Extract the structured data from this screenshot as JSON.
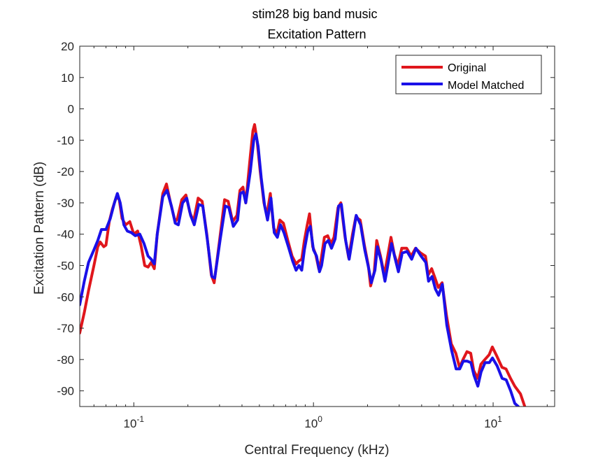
{
  "chart_data": {
    "type": "line",
    "title": "stim28 big band music",
    "subtitle": "Excitation Pattern",
    "xlabel": "Central Frequency (kHz)",
    "ylabel": "Excitation Pattern (dB)",
    "xscale": "log",
    "xlim": [
      0.05,
      22
    ],
    "ylim": [
      -95,
      20
    ],
    "yticks": [
      20,
      10,
      0,
      -10,
      -20,
      -30,
      -40,
      -50,
      -60,
      -70,
      -80,
      -90
    ],
    "ytick_labels": [
      "20",
      "10",
      "0",
      "-10",
      "-20",
      "-30",
      "-40",
      "-50",
      "-60",
      "-70",
      "-80",
      "-90"
    ],
    "xticks": [
      {
        "value": 0.1,
        "base": "10",
        "exp": "-1"
      },
      {
        "value": 1,
        "base": "10",
        "exp": "0"
      },
      {
        "value": 10,
        "base": "10",
        "exp": "1"
      }
    ],
    "grid": false,
    "legend_position": "top-right",
    "series": [
      {
        "name": "Original",
        "color": "#e0161c",
        "points": [
          [
            0.05,
            -71.5
          ],
          [
            0.053,
            -65
          ],
          [
            0.056,
            -58
          ],
          [
            0.06,
            -50
          ],
          [
            0.063,
            -44
          ],
          [
            0.065,
            -42.5
          ],
          [
            0.068,
            -44
          ],
          [
            0.07,
            -43.5
          ],
          [
            0.073,
            -36
          ],
          [
            0.076,
            -32
          ],
          [
            0.08,
            -28
          ],
          [
            0.083,
            -29
          ],
          [
            0.086,
            -35
          ],
          [
            0.09,
            -37
          ],
          [
            0.095,
            -36
          ],
          [
            0.1,
            -40
          ],
          [
            0.105,
            -39
          ],
          [
            0.11,
            -44
          ],
          [
            0.115,
            -50
          ],
          [
            0.12,
            -50.5
          ],
          [
            0.125,
            -49
          ],
          [
            0.13,
            -51
          ],
          [
            0.135,
            -40
          ],
          [
            0.145,
            -27
          ],
          [
            0.152,
            -24
          ],
          [
            0.16,
            -30
          ],
          [
            0.17,
            -36
          ],
          [
            0.175,
            -35
          ],
          [
            0.185,
            -29
          ],
          [
            0.195,
            -27.5
          ],
          [
            0.205,
            -33
          ],
          [
            0.215,
            -36
          ],
          [
            0.228,
            -28.5
          ],
          [
            0.24,
            -29.5
          ],
          [
            0.255,
            -40
          ],
          [
            0.27,
            -53
          ],
          [
            0.28,
            -55.5
          ],
          [
            0.3,
            -42
          ],
          [
            0.32,
            -29
          ],
          [
            0.335,
            -29.5
          ],
          [
            0.355,
            -36
          ],
          [
            0.375,
            -34
          ],
          [
            0.39,
            -26
          ],
          [
            0.405,
            -25
          ],
          [
            0.42,
            -30
          ],
          [
            0.445,
            -15
          ],
          [
            0.46,
            -7
          ],
          [
            0.47,
            -5
          ],
          [
            0.485,
            -10
          ],
          [
            0.505,
            -20
          ],
          [
            0.53,
            -30
          ],
          [
            0.55,
            -34
          ],
          [
            0.575,
            -27
          ],
          [
            0.6,
            -38
          ],
          [
            0.625,
            -40
          ],
          [
            0.65,
            -35.5
          ],
          [
            0.68,
            -36.5
          ],
          [
            0.72,
            -42
          ],
          [
            0.76,
            -47
          ],
          [
            0.8,
            -49.5
          ],
          [
            0.83,
            -48.5
          ],
          [
            0.86,
            -48
          ],
          [
            0.89,
            -42
          ],
          [
            0.92,
            -37.5
          ],
          [
            0.95,
            -33.5
          ],
          [
            0.99,
            -44
          ],
          [
            1.03,
            -46.5
          ],
          [
            1.07,
            -51
          ],
          [
            1.1,
            -48.5
          ],
          [
            1.15,
            -41
          ],
          [
            1.2,
            -40.5
          ],
          [
            1.25,
            -43
          ],
          [
            1.3,
            -41
          ],
          [
            1.37,
            -31.5
          ],
          [
            1.42,
            -30
          ],
          [
            1.5,
            -41
          ],
          [
            1.57,
            -47.5
          ],
          [
            1.65,
            -40
          ],
          [
            1.72,
            -34.5
          ],
          [
            1.82,
            -35.5
          ],
          [
            1.92,
            -43.5
          ],
          [
            2.02,
            -50
          ],
          [
            2.08,
            -56.5
          ],
          [
            2.18,
            -52
          ],
          [
            2.25,
            -42
          ],
          [
            2.36,
            -47
          ],
          [
            2.48,
            -53
          ],
          [
            2.58,
            -47.5
          ],
          [
            2.7,
            -41
          ],
          [
            2.82,
            -46.5
          ],
          [
            2.95,
            -50
          ],
          [
            3.1,
            -44.5
          ],
          [
            3.3,
            -44.5
          ],
          [
            3.5,
            -47
          ],
          [
            3.7,
            -44.5
          ],
          [
            3.95,
            -46
          ],
          [
            4.2,
            -47
          ],
          [
            4.35,
            -53
          ],
          [
            4.55,
            -51
          ],
          [
            4.75,
            -54
          ],
          [
            4.95,
            -57
          ],
          [
            5.2,
            -55.5
          ],
          [
            5.5,
            -66
          ],
          [
            5.85,
            -75
          ],
          [
            6.2,
            -78
          ],
          [
            6.5,
            -82.5
          ],
          [
            6.8,
            -80
          ],
          [
            7.15,
            -77.5
          ],
          [
            7.5,
            -78
          ],
          [
            7.8,
            -83.5
          ],
          [
            8.2,
            -86
          ],
          [
            8.55,
            -81.5
          ],
          [
            9.0,
            -80
          ],
          [
            9.5,
            -78.5
          ],
          [
            9.9,
            -76
          ],
          [
            10.5,
            -79
          ],
          [
            11.2,
            -82.5
          ],
          [
            11.8,
            -83
          ],
          [
            12.5,
            -86
          ],
          [
            13.2,
            -88.5
          ],
          [
            14.2,
            -91
          ],
          [
            15.0,
            -95
          ]
        ]
      },
      {
        "name": "Model Matched",
        "color": "#1a10e8",
        "points": [
          [
            0.05,
            -62.5
          ],
          [
            0.053,
            -55
          ],
          [
            0.056,
            -49
          ],
          [
            0.06,
            -45
          ],
          [
            0.063,
            -42
          ],
          [
            0.066,
            -38.5
          ],
          [
            0.07,
            -38.5
          ],
          [
            0.074,
            -35
          ],
          [
            0.078,
            -30
          ],
          [
            0.081,
            -27
          ],
          [
            0.084,
            -30
          ],
          [
            0.088,
            -37
          ],
          [
            0.092,
            -39
          ],
          [
            0.097,
            -39.5
          ],
          [
            0.102,
            -40.5
          ],
          [
            0.108,
            -40
          ],
          [
            0.114,
            -43
          ],
          [
            0.12,
            -47
          ],
          [
            0.125,
            -48
          ],
          [
            0.13,
            -49.5
          ],
          [
            0.135,
            -40
          ],
          [
            0.145,
            -28
          ],
          [
            0.153,
            -26
          ],
          [
            0.162,
            -31
          ],
          [
            0.17,
            -36.5
          ],
          [
            0.177,
            -37
          ],
          [
            0.187,
            -30
          ],
          [
            0.197,
            -28.5
          ],
          [
            0.207,
            -34
          ],
          [
            0.217,
            -37
          ],
          [
            0.23,
            -30.5
          ],
          [
            0.242,
            -31
          ],
          [
            0.257,
            -42
          ],
          [
            0.272,
            -53.5
          ],
          [
            0.282,
            -54
          ],
          [
            0.302,
            -42
          ],
          [
            0.323,
            -31
          ],
          [
            0.338,
            -31.5
          ],
          [
            0.358,
            -37.5
          ],
          [
            0.378,
            -35.5
          ],
          [
            0.392,
            -27
          ],
          [
            0.407,
            -26.5
          ],
          [
            0.42,
            -30
          ],
          [
            0.445,
            -20
          ],
          [
            0.465,
            -10
          ],
          [
            0.478,
            -8
          ],
          [
            0.492,
            -12
          ],
          [
            0.512,
            -22
          ],
          [
            0.535,
            -31
          ],
          [
            0.555,
            -35.5
          ],
          [
            0.58,
            -28.5
          ],
          [
            0.605,
            -39.5
          ],
          [
            0.63,
            -41
          ],
          [
            0.655,
            -37
          ],
          [
            0.685,
            -39.5
          ],
          [
            0.725,
            -44
          ],
          [
            0.765,
            -48.5
          ],
          [
            0.8,
            -51.5
          ],
          [
            0.83,
            -50
          ],
          [
            0.86,
            -51.5
          ],
          [
            0.89,
            -45
          ],
          [
            0.93,
            -39
          ],
          [
            0.96,
            -37.5
          ],
          [
            1.0,
            -45
          ],
          [
            1.04,
            -47
          ],
          [
            1.08,
            -52
          ],
          [
            1.11,
            -50
          ],
          [
            1.16,
            -43
          ],
          [
            1.21,
            -42
          ],
          [
            1.26,
            -44.5
          ],
          [
            1.32,
            -41.5
          ],
          [
            1.38,
            -31
          ],
          [
            1.43,
            -30.5
          ],
          [
            1.51,
            -42
          ],
          [
            1.58,
            -48
          ],
          [
            1.66,
            -40.5
          ],
          [
            1.73,
            -34
          ],
          [
            1.83,
            -37
          ],
          [
            1.93,
            -45
          ],
          [
            2.03,
            -51
          ],
          [
            2.1,
            -55.5
          ],
          [
            2.2,
            -51.5
          ],
          [
            2.27,
            -44
          ],
          [
            2.38,
            -48.5
          ],
          [
            2.5,
            -55
          ],
          [
            2.6,
            -49.5
          ],
          [
            2.72,
            -43
          ],
          [
            2.84,
            -47.5
          ],
          [
            2.97,
            -52
          ],
          [
            3.12,
            -46
          ],
          [
            3.32,
            -45.5
          ],
          [
            3.52,
            -48
          ],
          [
            3.72,
            -44.5
          ],
          [
            3.97,
            -47
          ],
          [
            4.22,
            -49
          ],
          [
            4.37,
            -55
          ],
          [
            4.57,
            -53.5
          ],
          [
            4.77,
            -57.5
          ],
          [
            4.97,
            -59.5
          ],
          [
            5.22,
            -56
          ],
          [
            5.52,
            -69
          ],
          [
            5.87,
            -77
          ],
          [
            6.22,
            -83
          ],
          [
            6.52,
            -83
          ],
          [
            6.82,
            -80.5
          ],
          [
            7.17,
            -80.5
          ],
          [
            7.52,
            -81
          ],
          [
            7.82,
            -85
          ],
          [
            8.22,
            -88.5
          ],
          [
            8.57,
            -84
          ],
          [
            9.02,
            -81
          ],
          [
            9.52,
            -81
          ],
          [
            9.92,
            -79.5
          ],
          [
            10.52,
            -82
          ],
          [
            11.22,
            -86
          ],
          [
            11.82,
            -86.5
          ],
          [
            12.52,
            -90
          ],
          [
            13.2,
            -94
          ],
          [
            13.8,
            -95
          ]
        ]
      }
    ]
  }
}
